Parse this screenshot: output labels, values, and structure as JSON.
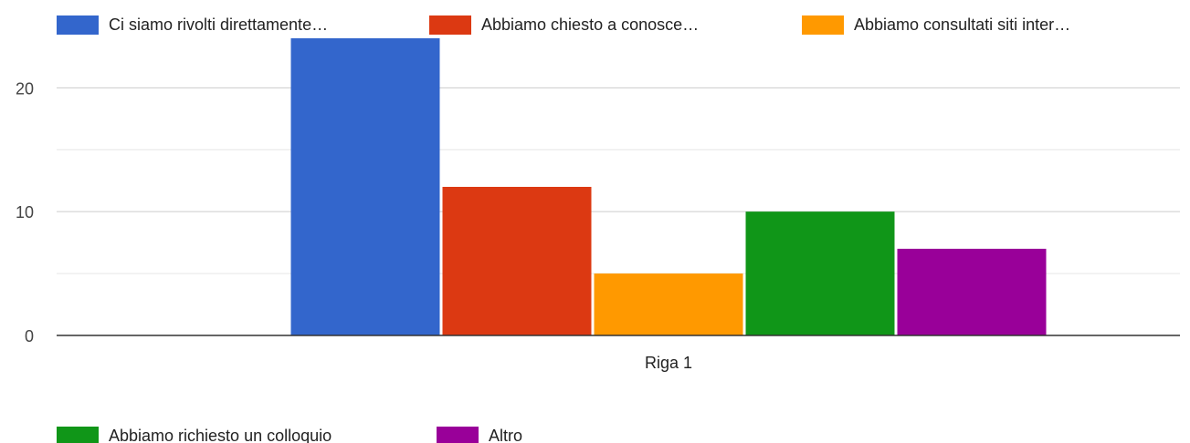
{
  "chart_data": {
    "type": "bar",
    "categories": [
      "Riga 1"
    ],
    "series": [
      {
        "name": "Ci siamo rivolti direttamente…",
        "values": [
          24
        ],
        "color": "#3366cc"
      },
      {
        "name": "Abbiamo chiesto a conosce…",
        "values": [
          12
        ],
        "color": "#dc3912"
      },
      {
        "name": "Abbiamo consultati siti inter…",
        "values": [
          5
        ],
        "color": "#ff9900"
      },
      {
        "name": "Abbiamo richiesto un colloquio",
        "values": [
          10
        ],
        "color": "#109618"
      },
      {
        "name": "Altro",
        "values": [
          7
        ],
        "color": "#990099"
      }
    ],
    "title": "",
    "xlabel": "",
    "ylabel": "",
    "ylim": [
      0,
      24
    ],
    "yticks": [
      "0",
      "10",
      "20"
    ],
    "grid": true,
    "legend_position": "top-and-bottom"
  }
}
